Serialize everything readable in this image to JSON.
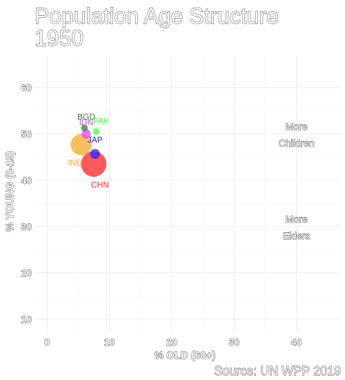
{
  "chart_data": {
    "type": "scatter",
    "title": "Population Age Structure",
    "subtitle": "1950",
    "xlabel": "% OLD (60+)",
    "ylabel": "% YOUNG (0-19)",
    "caption": "Source: UN WPP 2019",
    "xlim": [
      -2,
      47
    ],
    "ylim": [
      7,
      67
    ],
    "x_ticks": [
      0,
      10,
      20,
      30,
      40
    ],
    "y_ticks": [
      10,
      20,
      30,
      40,
      50,
      60
    ],
    "grid": true,
    "points": [
      {
        "label": "CHN",
        "x": 7.5,
        "y": 43.5,
        "size": 543,
        "color": "#ff1a1a"
      },
      {
        "label": "IND",
        "x": 5.5,
        "y": 47.7,
        "size": 376,
        "color": "#f5a623"
      },
      {
        "label": "JAP",
        "x": 7.7,
        "y": 45.7,
        "size": 83,
        "color": "#2020ff"
      },
      {
        "label": "IDN",
        "x": 6.3,
        "y": 50.0,
        "size": 70,
        "color": "#e040fb"
      },
      {
        "label": "PAK",
        "x": 7.9,
        "y": 50.5,
        "size": 37,
        "color": "#33ff33"
      },
      {
        "label": "BGD",
        "x": 6.0,
        "y": 51.3,
        "size": 38,
        "color": "#2e7d32"
      }
    ],
    "annotations": [
      {
        "lines": [
          "More",
          "Children"
        ],
        "x": 40,
        "y": 50
      },
      {
        "lines": [
          "More",
          "Elders"
        ],
        "x": 40,
        "y": 30
      }
    ]
  }
}
